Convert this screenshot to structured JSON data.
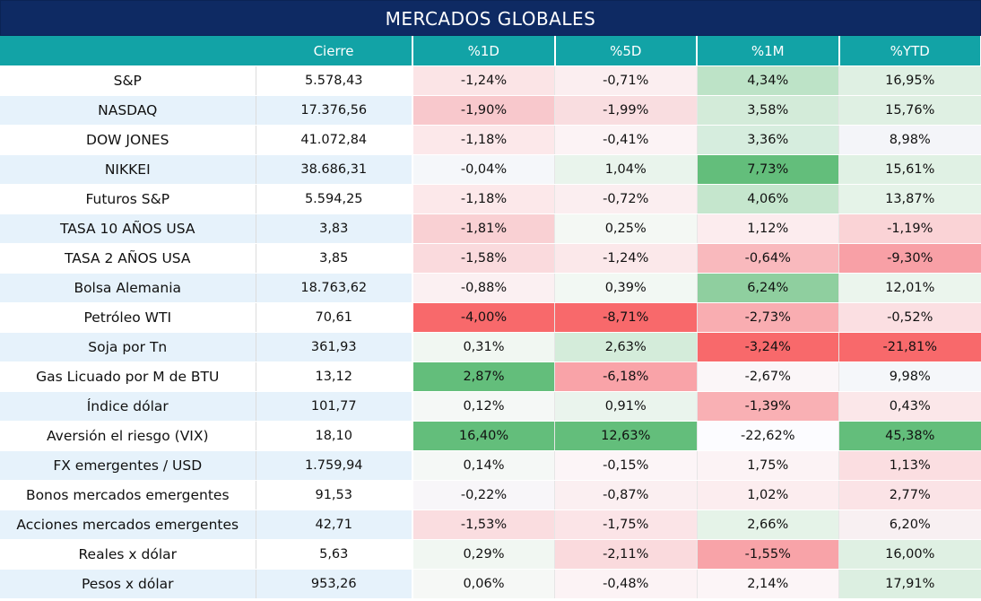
{
  "title": "MERCADOS GLOBALES",
  "headers": [
    "",
    "Cierre",
    "%1D",
    "%5D",
    "%1M",
    "%YTD"
  ],
  "colors": {
    "title_bg": "#0e2a63",
    "header_bg": "#12a3a6",
    "row_alt": "#e6f2fb"
  },
  "rows": [
    {
      "name": "S&P",
      "close": "5.578,43",
      "cells": [
        {
          "v": "-1,24%",
          "c": "#fbe4e6"
        },
        {
          "v": "-0,71%",
          "c": "#fbeef0"
        },
        {
          "v": "4,34%",
          "c": "#bde3c7"
        },
        {
          "v": "16,95%",
          "c": "#dff0e3"
        }
      ]
    },
    {
      "name": "NASDAQ",
      "close": "17.376,56",
      "cells": [
        {
          "v": "-1,90%",
          "c": "#f8c8cc"
        },
        {
          "v": "-1,99%",
          "c": "#f9dde0"
        },
        {
          "v": "3,58%",
          "c": "#d3ebd9"
        },
        {
          "v": "15,76%",
          "c": "#dff0e3"
        }
      ]
    },
    {
      "name": "DOW JONES",
      "close": "41.072,84",
      "cells": [
        {
          "v": "-1,18%",
          "c": "#fce8ea"
        },
        {
          "v": "-0,41%",
          "c": "#fcf3f5"
        },
        {
          "v": "3,36%",
          "c": "#d6edde"
        },
        {
          "v": "8,98%",
          "c": "#f4f5f9"
        }
      ]
    },
    {
      "name": "NIKKEI",
      "close": "38.686,31",
      "cells": [
        {
          "v": "-0,04%",
          "c": "#f5f7fa"
        },
        {
          "v": "1,04%",
          "c": "#e9f4ec"
        },
        {
          "v": "7,73%",
          "c": "#63be7b"
        },
        {
          "v": "15,61%",
          "c": "#e0f1e4"
        }
      ]
    },
    {
      "name": "Futuros S&P",
      "close": "5.594,25",
      "cells": [
        {
          "v": "-1,18%",
          "c": "#fce8ea"
        },
        {
          "v": "-0,72%",
          "c": "#fbeef0"
        },
        {
          "v": "4,06%",
          "c": "#c5e6cd"
        },
        {
          "v": "13,87%",
          "c": "#e5f3e8"
        }
      ]
    },
    {
      "name": "TASA 10 AÑOS USA",
      "close": "3,83",
      "cells": [
        {
          "v": "-1,81%",
          "c": "#f9d0d3"
        },
        {
          "v": "0,25%",
          "c": "#f4f8f4"
        },
        {
          "v": "1,12%",
          "c": "#fcecee"
        },
        {
          "v": "-1,19%",
          "c": "#fad3d6"
        }
      ]
    },
    {
      "name": "TASA 2 AÑOS USA",
      "close": "3,85",
      "cells": [
        {
          "v": "-1,58%",
          "c": "#fadadd"
        },
        {
          "v": "-1,24%",
          "c": "#fbe8ea"
        },
        {
          "v": "-0,64%",
          "c": "#f9b9bd"
        },
        {
          "v": "-9,30%",
          "c": "#f8a0a6"
        }
      ]
    },
    {
      "name": "Bolsa Alemania",
      "close": "18.763,62",
      "cells": [
        {
          "v": "-0,88%",
          "c": "#fbf0f2"
        },
        {
          "v": "0,39%",
          "c": "#f2f8f3"
        },
        {
          "v": "6,24%",
          "c": "#8fcf9f"
        },
        {
          "v": "12,01%",
          "c": "#ebf5ed"
        }
      ]
    },
    {
      "name": "Petróleo WTI",
      "close": "70,61",
      "cells": [
        {
          "v": "-4,00%",
          "c": "#f8696b"
        },
        {
          "v": "-8,71%",
          "c": "#f8696b"
        },
        {
          "v": "-2,73%",
          "c": "#f9adb1"
        },
        {
          "v": "-0,52%",
          "c": "#fbdfe2"
        }
      ]
    },
    {
      "name": "Soja por Tn",
      "close": "361,93",
      "cells": [
        {
          "v": "0,31%",
          "c": "#f1f7f2"
        },
        {
          "v": "2,63%",
          "c": "#d4ecda"
        },
        {
          "v": "-3,24%",
          "c": "#f8696b"
        },
        {
          "v": "-21,81%",
          "c": "#f8696b"
        }
      ]
    },
    {
      "name": "Gas Licuado por M de BTU",
      "close": "13,12",
      "cells": [
        {
          "v": "2,87%",
          "c": "#63be7b"
        },
        {
          "v": "-6,18%",
          "c": "#f9a3a8"
        },
        {
          "v": "-2,67%",
          "c": "#fbf6f8"
        },
        {
          "v": "9,98%",
          "c": "#f5f7fa"
        }
      ]
    },
    {
      "name": "Índice dólar",
      "close": "101,77",
      "cells": [
        {
          "v": "0,12%",
          "c": "#f5f8f6"
        },
        {
          "v": "0,91%",
          "c": "#eaf4ed"
        },
        {
          "v": "-1,39%",
          "c": "#f9b0b4"
        },
        {
          "v": "0,43%",
          "c": "#fbe7e9"
        }
      ]
    },
    {
      "name": "Aversión el riesgo (VIX)",
      "close": "18,10",
      "cells": [
        {
          "v": "16,40%",
          "c": "#63be7b"
        },
        {
          "v": "12,63%",
          "c": "#63be7b"
        },
        {
          "v": "-22,62%",
          "c": "#fcfcff"
        },
        {
          "v": "45,38%",
          "c": "#63be7b"
        }
      ]
    },
    {
      "name": "FX emergentes / USD",
      "close": "1.759,94",
      "cells": [
        {
          "v": "0,14%",
          "c": "#f5f8f6"
        },
        {
          "v": "-0,15%",
          "c": "#fcf5f7"
        },
        {
          "v": "1,75%",
          "c": "#fcf3f5"
        },
        {
          "v": "1,13%",
          "c": "#fbdee1"
        }
      ]
    },
    {
      "name": "Bonos mercados emergentes",
      "close": "91,53",
      "cells": [
        {
          "v": "-0,22%",
          "c": "#f8f6f9"
        },
        {
          "v": "-0,87%",
          "c": "#fbeff1"
        },
        {
          "v": "1,02%",
          "c": "#fcedef"
        },
        {
          "v": "2,77%",
          "c": "#fbe3e6"
        }
      ]
    },
    {
      "name": "Acciones mercados emergentes",
      "close": "42,71",
      "cells": [
        {
          "v": "-1,53%",
          "c": "#fadde0"
        },
        {
          "v": "-1,75%",
          "c": "#fbe4e7"
        },
        {
          "v": "2,66%",
          "c": "#e5f3e8"
        },
        {
          "v": "6,20%",
          "c": "#f8f0f2"
        }
      ]
    },
    {
      "name": "Reales x dólar",
      "close": "5,63",
      "cells": [
        {
          "v": "0,29%",
          "c": "#f1f7f2"
        },
        {
          "v": "-2,11%",
          "c": "#fadadd"
        },
        {
          "v": "-1,55%",
          "c": "#f8a3a8"
        },
        {
          "v": "16,00%",
          "c": "#dff0e3"
        }
      ]
    },
    {
      "name": "Pesos x dólar",
      "close": "953,26",
      "cells": [
        {
          "v": "0,06%",
          "c": "#f6f8f6"
        },
        {
          "v": "-0,48%",
          "c": "#fcf3f5"
        },
        {
          "v": "2,14%",
          "c": "#fcf5f7"
        },
        {
          "v": "17,91%",
          "c": "#dcefe1"
        }
      ]
    }
  ]
}
